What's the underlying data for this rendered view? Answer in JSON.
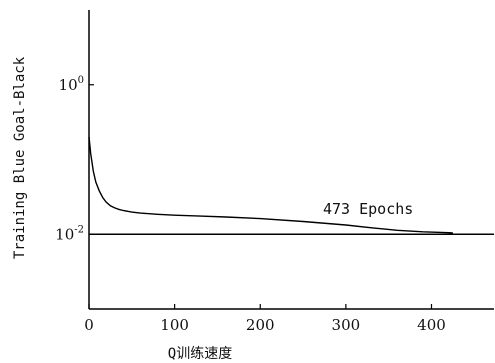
{
  "chart_data": {
    "type": "line",
    "title": "",
    "xlabel": "Q训练速度",
    "ylabel": "Training Blue Goal-Black",
    "x_range": [
      0,
      473
    ],
    "y_scale": "log",
    "y_range": [
      0.001,
      10
    ],
    "x_ticks": [
      {
        "value": 0,
        "label": "0"
      },
      {
        "value": 100,
        "label": "100"
      },
      {
        "value": 200,
        "label": "200"
      },
      {
        "value": 300,
        "label": "300"
      },
      {
        "value": 400,
        "label": "400"
      }
    ],
    "y_ticks": [
      {
        "value": 1,
        "label_base": "10",
        "label_exp": "0"
      },
      {
        "value": 0.01,
        "label_base": "10",
        "label_exp": "-2"
      }
    ],
    "goal": 0.01,
    "annotation": "473 Epochs",
    "grid": false,
    "series": [
      {
        "x": [
          0,
          2,
          5,
          8,
          12,
          16,
          20,
          25,
          30,
          35,
          40,
          50,
          60,
          80,
          100,
          130,
          160,
          200,
          250,
          300,
          330,
          360,
          390,
          420,
          425
        ],
        "y": [
          0.2,
          0.12,
          0.07,
          0.05,
          0.038,
          0.031,
          0.027,
          0.024,
          0.0225,
          0.0215,
          0.0208,
          0.0198,
          0.0192,
          0.0185,
          0.018,
          0.0175,
          0.017,
          0.0162,
          0.0148,
          0.0133,
          0.0122,
          0.0113,
          0.0108,
          0.0105,
          0.0104
        ]
      }
    ]
  }
}
